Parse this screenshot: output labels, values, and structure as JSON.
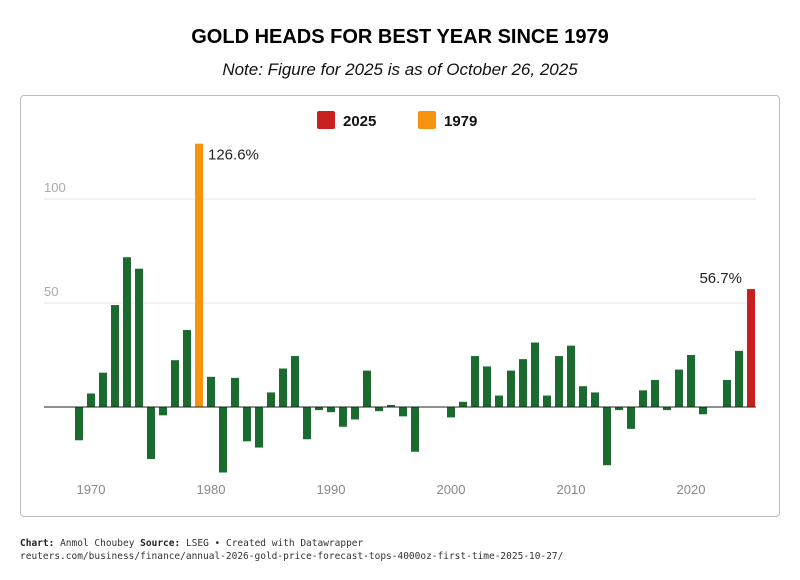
{
  "title": "GOLD HEADS FOR BEST YEAR SINCE 1979",
  "subtitle": "Note: Figure for 2025 is as of October 26, 2025",
  "footer": {
    "chart_label": "Chart:",
    "chart_author": "Anmol Choubey",
    "source_label": "Source:",
    "source_text": "LSEG • Created with Datawrapper",
    "url": "reuters.com/business/finance/annual-2026-gold-price-forecast-tops-4000oz-first-time-2025-10-27/"
  },
  "chart_data": {
    "type": "bar",
    "ylim": [
      -35,
      130
    ],
    "yticks": [
      50,
      100
    ],
    "xticks": [
      1970,
      1980,
      1990,
      2000,
      2010,
      2020
    ],
    "grid": true,
    "legend": {
      "placement": "top-center",
      "entries": [
        {
          "label": "2025",
          "color": "#c91f1f"
        },
        {
          "label": "1979",
          "color": "#f7930f"
        }
      ]
    },
    "colors": {
      "default": "#1b6b30",
      "2025": "#c91f1f",
      "1979": "#f7930f"
    },
    "annotations": [
      {
        "year": 1979,
        "text": "126.6%"
      },
      {
        "year": 2025,
        "text": "56.7%"
      }
    ],
    "x": [
      1969,
      1970,
      1971,
      1972,
      1973,
      1974,
      1975,
      1976,
      1977,
      1978,
      1979,
      1980,
      1981,
      1982,
      1983,
      1984,
      1985,
      1986,
      1987,
      1988,
      1989,
      1990,
      1991,
      1992,
      1993,
      1994,
      1995,
      1996,
      1997,
      1998,
      1999,
      2000,
      2001,
      2002,
      2003,
      2004,
      2005,
      2006,
      2007,
      2008,
      2009,
      2010,
      2011,
      2012,
      2013,
      2014,
      2015,
      2016,
      2017,
      2018,
      2019,
      2020,
      2021,
      2022,
      2023,
      2024,
      2025
    ],
    "values": [
      -16,
      6.5,
      16.5,
      49,
      72,
      66.5,
      -25,
      -4,
      22.5,
      37,
      126.6,
      14.5,
      -31.5,
      14,
      -16.5,
      -19.5,
      7,
      18.5,
      24.5,
      -15.5,
      -1.5,
      -2.5,
      -9.5,
      -6,
      17.5,
      -2,
      1,
      -4.5,
      -21.5,
      0,
      0,
      -5,
      2.5,
      24.5,
      19.5,
      5.5,
      17.5,
      23,
      31,
      5.5,
      24.5,
      29.5,
      10,
      7,
      -28,
      -1.5,
      -10.5,
      8,
      13,
      -1.5,
      18,
      25,
      -3.5,
      0,
      13,
      27,
      56.7
    ]
  }
}
